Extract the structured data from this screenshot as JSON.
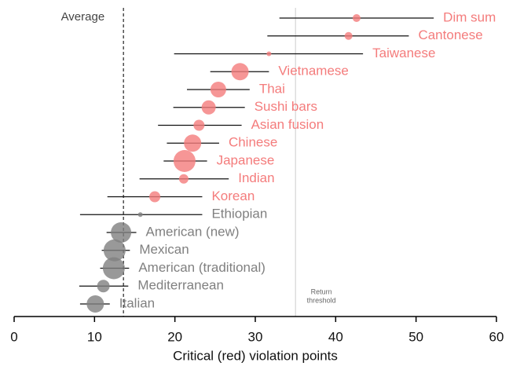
{
  "chart_data": {
    "type": "dotplot",
    "x_label": "Critical (red) violation points",
    "categories": [
      "Dim sum",
      "Cantonese",
      "Taiwanese",
      "Vietnamese",
      "Thai",
      "Sushi bars",
      "Asian fusion",
      "Chinese",
      "Japanese",
      "Indian",
      "Korean",
      "Ethiopian",
      "American (new)",
      "Mexican",
      "American (traditional)",
      "Mediterranean",
      "Italian"
    ],
    "values": [
      42.6,
      41.6,
      31.7,
      28.1,
      25.4,
      24.2,
      23.0,
      22.2,
      21.2,
      21.1,
      17.5,
      15.7,
      13.3,
      12.5,
      12.4,
      11.1,
      10.1
    ],
    "ci_low": [
      33.0,
      31.5,
      19.9,
      24.4,
      21.5,
      19.8,
      17.9,
      19.0,
      18.6,
      15.6,
      11.6,
      8.2,
      11.5,
      10.9,
      10.7,
      8.1,
      8.2
    ],
    "ci_high": [
      52.2,
      49.1,
      43.4,
      31.7,
      29.3,
      28.7,
      28.3,
      25.5,
      24.0,
      26.7,
      23.4,
      23.4,
      15.2,
      14.4,
      14.3,
      14.2,
      11.9
    ],
    "sizes": [
      5,
      5,
      3,
      11,
      10,
      9,
      7,
      11,
      14,
      6,
      7,
      3,
      13,
      14,
      14,
      8,
      11
    ],
    "colors": [
      "#f47c7c",
      "#f47c7c",
      "#f47c7c",
      "#f47c7c",
      "#f47c7c",
      "#f47c7c",
      "#f47c7c",
      "#f47c7c",
      "#f47c7c",
      "#f47c7c",
      "#f47c7c",
      "#808080",
      "#808080",
      "#808080",
      "#808080",
      "#808080",
      "#808080"
    ],
    "average": {
      "label": "Average",
      "value": 13.6
    },
    "threshold": {
      "label": [
        "Return",
        "threshold"
      ],
      "value": 35
    },
    "xlim": [
      0,
      60
    ],
    "xticks": [
      0,
      10,
      20,
      30,
      40,
      50,
      60
    ]
  }
}
